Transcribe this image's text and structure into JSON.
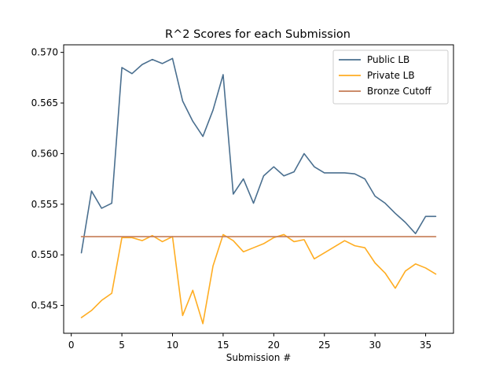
{
  "chart_data": {
    "type": "line",
    "title": "R^2 Scores for each Submission",
    "xlabel": "Submission #",
    "ylabel": "",
    "xlim": [
      -0.75,
      37.75
    ],
    "ylim": [
      0.54225,
      0.57075
    ],
    "xticks": [
      0,
      5,
      10,
      15,
      20,
      25,
      30,
      35
    ],
    "xtick_labels": [
      "0",
      "5",
      "10",
      "15",
      "20",
      "25",
      "30",
      "35"
    ],
    "yticks": [
      0.545,
      0.55,
      0.555,
      0.56,
      0.565,
      0.57
    ],
    "ytick_labels": [
      "0.545",
      "0.550",
      "0.555",
      "0.560",
      "0.565",
      "0.570"
    ],
    "grid": false,
    "legend_position": "top-right",
    "x": [
      1,
      2,
      3,
      4,
      5,
      6,
      7,
      8,
      9,
      10,
      11,
      12,
      13,
      14,
      15,
      16,
      17,
      18,
      19,
      20,
      21,
      22,
      23,
      24,
      25,
      26,
      27,
      28,
      29,
      30,
      31,
      32,
      33,
      34,
      35,
      36
    ],
    "series": [
      {
        "name": "Public LB",
        "color": "#4a6f8f",
        "values": [
          0.5502,
          0.5563,
          0.5546,
          0.5551,
          0.5685,
          0.5679,
          0.5688,
          0.5693,
          0.5689,
          0.5694,
          0.5652,
          0.5632,
          0.5617,
          0.5643,
          0.5678,
          0.556,
          0.5575,
          0.5551,
          0.5578,
          0.5587,
          0.5578,
          0.5582,
          0.56,
          0.5587,
          0.5581,
          0.5581,
          0.5581,
          0.558,
          0.5575,
          0.5558,
          0.5551,
          0.5541,
          0.5532,
          0.5521,
          0.5538,
          0.5538
        ]
      },
      {
        "name": "Private LB",
        "color": "#ffad22",
        "values": [
          0.5438,
          0.5445,
          0.5455,
          0.5462,
          0.5517,
          0.5517,
          0.5514,
          0.5519,
          0.5513,
          0.5518,
          0.544,
          0.5465,
          0.5432,
          0.5489,
          0.552,
          0.5514,
          0.5503,
          0.5507,
          0.5511,
          0.5517,
          0.552,
          0.5513,
          0.5515,
          0.5496,
          0.5502,
          0.5508,
          0.5514,
          0.5509,
          0.5507,
          0.5492,
          0.5482,
          0.5467,
          0.5484,
          0.5491,
          0.5487,
          0.5481
        ]
      },
      {
        "name": "Bronze Cutoff",
        "color": "#c57c55",
        "values": [
          0.5518,
          0.5518,
          0.5518,
          0.5518,
          0.5518,
          0.5518,
          0.5518,
          0.5518,
          0.5518,
          0.5518,
          0.5518,
          0.5518,
          0.5518,
          0.5518,
          0.5518,
          0.5518,
          0.5518,
          0.5518,
          0.5518,
          0.5518,
          0.5518,
          0.5518,
          0.5518,
          0.5518,
          0.5518,
          0.5518,
          0.5518,
          0.5518,
          0.5518,
          0.5518,
          0.5518,
          0.5518,
          0.5518,
          0.5518,
          0.5518,
          0.5518
        ]
      }
    ]
  }
}
